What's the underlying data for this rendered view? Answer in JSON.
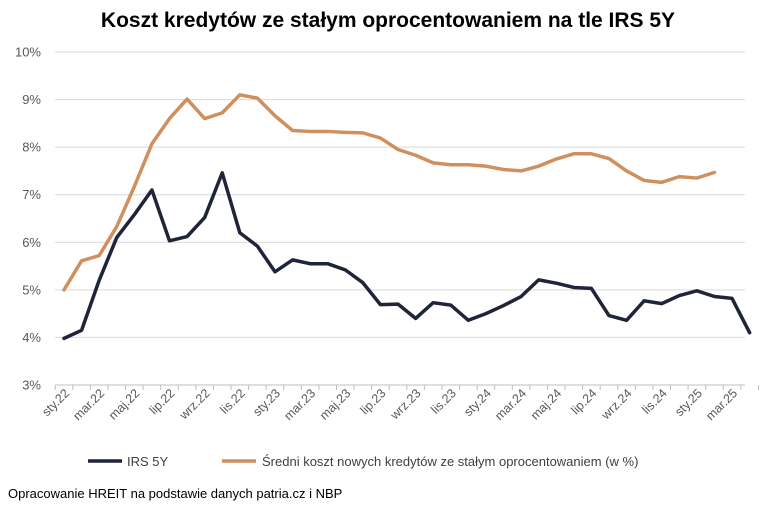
{
  "chart_data": {
    "type": "line",
    "title": "Koszt kredytów ze stałym oprocentowaniem na tle IRS 5Y",
    "xlabel": "",
    "ylabel": "",
    "ylim": [
      3,
      10
    ],
    "yticks": [
      "3%",
      "4%",
      "5%",
      "6%",
      "7%",
      "8%",
      "9%",
      "10%"
    ],
    "x_tick_labels": [
      "sty.22",
      "mar.22",
      "maj.22",
      "lip.22",
      "wrz.22",
      "lis.22",
      "sty.23",
      "mar.23",
      "maj.23",
      "lip.23",
      "wrz.23",
      "lis.23",
      "sty.24",
      "mar.24",
      "maj.24",
      "lip.24",
      "wrz.24",
      "lis.24",
      "sty.25",
      "mar.25"
    ],
    "x_count": 40,
    "grid": true,
    "legend_position": "bottom",
    "series": [
      {
        "name": "IRS 5Y",
        "color": "#1f2438",
        "values": [
          3.98,
          4.15,
          5.2,
          6.1,
          6.58,
          7.1,
          6.03,
          6.12,
          6.52,
          7.46,
          6.2,
          5.92,
          5.38,
          5.63,
          5.55,
          5.55,
          5.42,
          5.15,
          4.69,
          4.7,
          4.4,
          4.73,
          4.68,
          4.36,
          4.5,
          4.67,
          4.86,
          5.21,
          5.14,
          5.05,
          5.03,
          4.46,
          4.36,
          4.77,
          4.71,
          4.88,
          4.98,
          4.86,
          4.82,
          4.1
        ]
      },
      {
        "name": "Średni koszt nowych kredytów ze stałym oprocentowaniem (w %)",
        "color": "#d08f5e",
        "values": [
          5.0,
          5.61,
          5.72,
          6.33,
          7.17,
          8.07,
          8.6,
          9.01,
          8.6,
          8.72,
          9.1,
          9.03,
          8.66,
          8.35,
          8.33,
          8.33,
          8.31,
          8.3,
          8.19,
          7.95,
          7.83,
          7.67,
          7.63,
          7.63,
          7.6,
          7.53,
          7.5,
          7.6,
          7.75,
          7.86,
          7.86,
          7.76,
          7.5,
          7.3,
          7.26,
          7.38,
          7.35,
          7.47,
          null,
          null
        ]
      }
    ]
  },
  "source": "Opracowanie HREIT na podstawie danych patria.cz i NBP"
}
